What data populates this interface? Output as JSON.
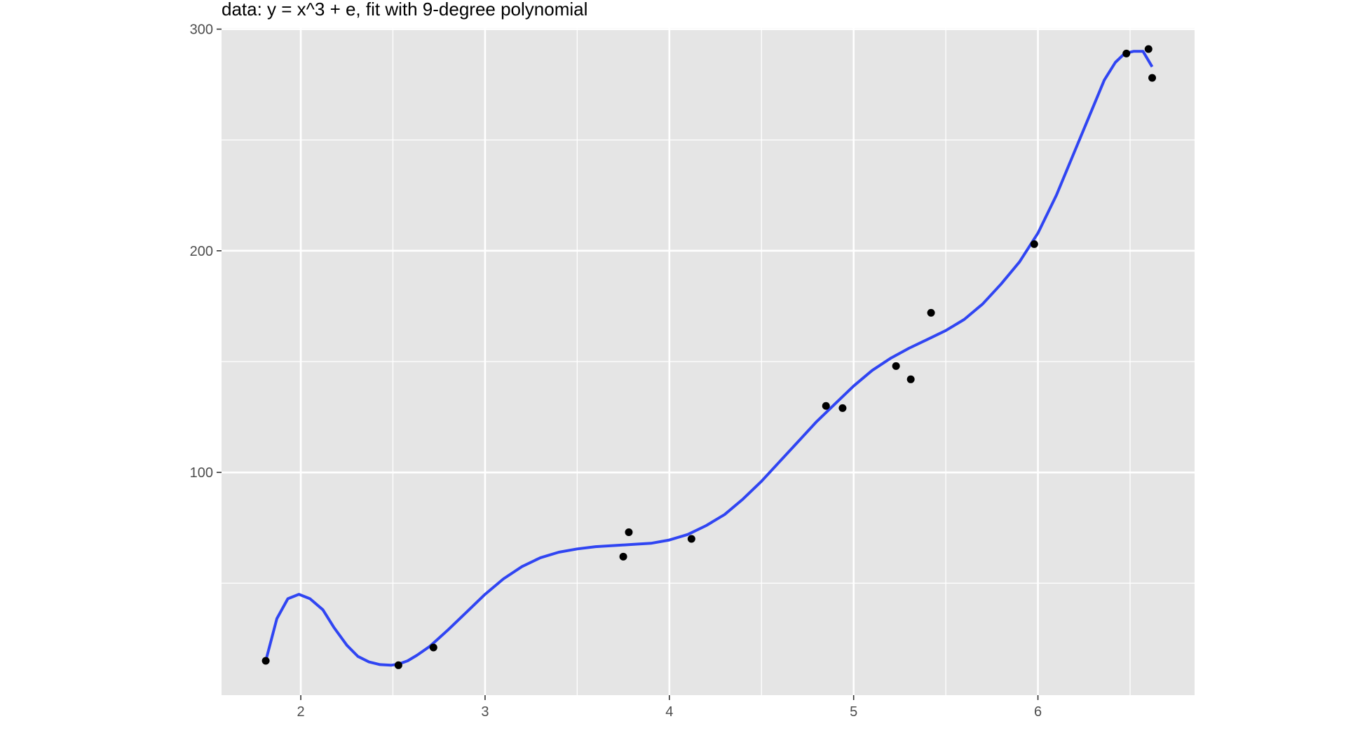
{
  "chart_data": {
    "type": "scatter",
    "title": "data: y = x^3  + e, fit with 9-degree polynomial",
    "xlabel": "",
    "ylabel": "",
    "xlim": [
      1.57,
      6.85
    ],
    "ylim": [
      -0.5,
      300.5
    ],
    "x_ticks": [
      2,
      3,
      4,
      5,
      6
    ],
    "x_minor_ticks": [
      2.5,
      3.5,
      4.5,
      5.5,
      6.5
    ],
    "y_ticks": [
      100,
      200,
      300
    ],
    "y_minor_ticks": [
      50,
      150,
      250
    ],
    "grid": true,
    "legend": "none",
    "colors": {
      "panel_background": "#E5E5E5",
      "grid": "#FFFFFF",
      "points": "#000000",
      "fit_line": "#3045F2",
      "tick_labels": "#4D4D4D",
      "ticks": "#333333"
    },
    "series": [
      {
        "type": "scatter",
        "x": [
          1.81,
          2.53,
          2.72,
          3.75,
          3.78,
          4.12,
          4.85,
          4.94,
          5.23,
          5.31,
          5.42,
          5.98,
          6.48,
          6.6,
          6.62
        ],
        "y": [
          15,
          13,
          21,
          62,
          73,
          70,
          130,
          129,
          148,
          142,
          172,
          203,
          289,
          291,
          278
        ]
      },
      {
        "type": "line",
        "x": [
          1.81,
          1.87,
          1.93,
          1.99,
          2.05,
          2.12,
          2.18,
          2.25,
          2.31,
          2.37,
          2.43,
          2.49,
          2.53,
          2.58,
          2.63,
          2.7,
          2.8,
          2.9,
          3.0,
          3.1,
          3.2,
          3.3,
          3.4,
          3.5,
          3.6,
          3.7,
          3.8,
          3.9,
          4.0,
          4.1,
          4.2,
          4.3,
          4.4,
          4.5,
          4.6,
          4.7,
          4.8,
          4.9,
          5.0,
          5.1,
          5.2,
          5.3,
          5.4,
          5.5,
          5.6,
          5.7,
          5.8,
          5.9,
          6.0,
          6.1,
          6.2,
          6.3,
          6.36,
          6.42,
          6.47,
          6.52,
          6.57,
          6.62
        ],
        "y": [
          15,
          34,
          43,
          45,
          43,
          38,
          30,
          22,
          17,
          14.5,
          13.3,
          13,
          13.5,
          15,
          17.5,
          21.5,
          29,
          37,
          45,
          52,
          57.5,
          61.5,
          64,
          65.5,
          66.5,
          67,
          67.5,
          68,
          69.5,
          72,
          76,
          81,
          88,
          96,
          105,
          114,
          123,
          131,
          139,
          146,
          151.5,
          156,
          160,
          164,
          169,
          176,
          185,
          195,
          208,
          225,
          245,
          265,
          277,
          285,
          289,
          290,
          290,
          283
        ]
      }
    ]
  }
}
